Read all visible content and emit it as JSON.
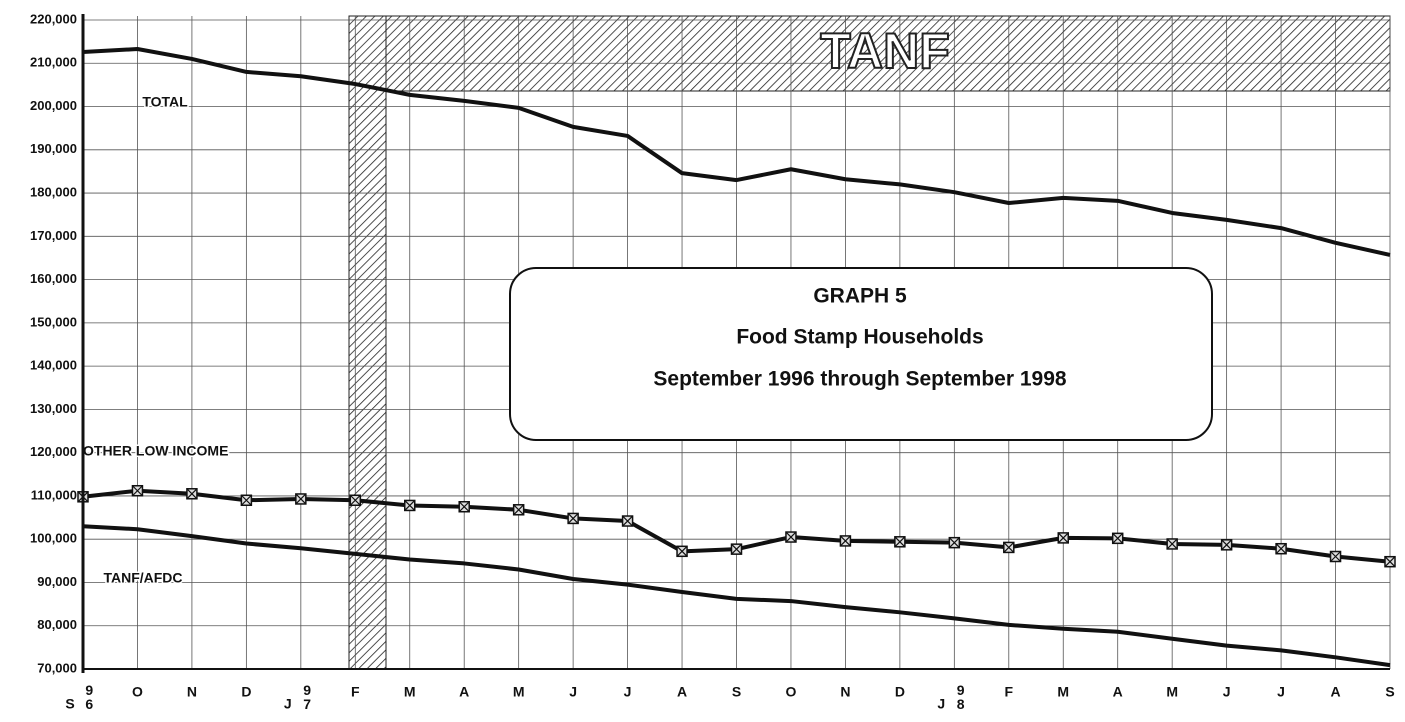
{
  "chart_data": {
    "type": "line",
    "title": "GRAPH 5",
    "subtitle": [
      "Food Stamp Households",
      "September 1996 through September 1998"
    ],
    "annotations": [
      "TANF"
    ],
    "categories": [
      "S",
      "O",
      "N",
      "D",
      "J",
      "F",
      "M",
      "A",
      "M",
      "J",
      "J",
      "A",
      "S",
      "O",
      "N",
      "D",
      "J",
      "F",
      "M",
      "A",
      "M",
      "J",
      "J",
      "A",
      "S"
    ],
    "x_years": [
      "96",
      null,
      null,
      null,
      "97",
      null,
      null,
      null,
      null,
      null,
      null,
      null,
      null,
      null,
      null,
      null,
      "98",
      null,
      null,
      null,
      null,
      null,
      null,
      null,
      null
    ],
    "series": [
      {
        "name": "TOTAL",
        "color": "#111111",
        "values": [
          212600,
          213300,
          211000,
          208000,
          207000,
          205200,
          202700,
          201300,
          199700,
          195300,
          193200,
          184600,
          183000,
          185500,
          183200,
          182000,
          180200,
          177700,
          178900,
          178200,
          175400,
          173800,
          171900,
          168500,
          165700
        ]
      },
      {
        "name": "OTHER LOW INCOME",
        "color": "#111111",
        "marker": "square-x",
        "values": [
          109800,
          111200,
          110500,
          109000,
          109300,
          109000,
          107800,
          107500,
          106800,
          104800,
          104200,
          97200,
          97700,
          100500,
          99600,
          99400,
          99200,
          98100,
          100300,
          100200,
          98900,
          98700,
          97800,
          96000,
          94800
        ]
      },
      {
        "name": "TANF/AFDC",
        "color": "#111111",
        "values": [
          103000,
          102300,
          100700,
          99000,
          97900,
          96600,
          95300,
          94400,
          93000,
          90800,
          89500,
          87800,
          86200,
          85700,
          84300,
          83100,
          81700,
          80200,
          79300,
          78600,
          77000,
          75400,
          74300,
          72700,
          70900
        ]
      }
    ],
    "ylim": [
      70000,
      220000
    ],
    "yticks": [
      {
        "value": 70000,
        "label": "70,000"
      },
      {
        "value": 80000,
        "label": "80,000"
      },
      {
        "value": 90000,
        "label": "90,000"
      },
      {
        "value": 100000,
        "label": "100,000"
      },
      {
        "value": 110000,
        "label": "110,000"
      },
      {
        "value": 120000,
        "label": "120,000"
      },
      {
        "value": 130000,
        "label": "130,000"
      },
      {
        "value": 140000,
        "label": "140,000"
      },
      {
        "value": 150000,
        "label": "150,000"
      },
      {
        "value": 160000,
        "label": "160,000"
      },
      {
        "value": 170000,
        "label": "170,000"
      },
      {
        "value": 180000,
        "label": "180,000"
      },
      {
        "value": 190000,
        "label": "190,000"
      },
      {
        "value": 200000,
        "label": "200,000"
      },
      {
        "value": 210000,
        "label": "210,000"
      },
      {
        "value": 220000,
        "label": "220,000"
      }
    ],
    "grid": true
  }
}
